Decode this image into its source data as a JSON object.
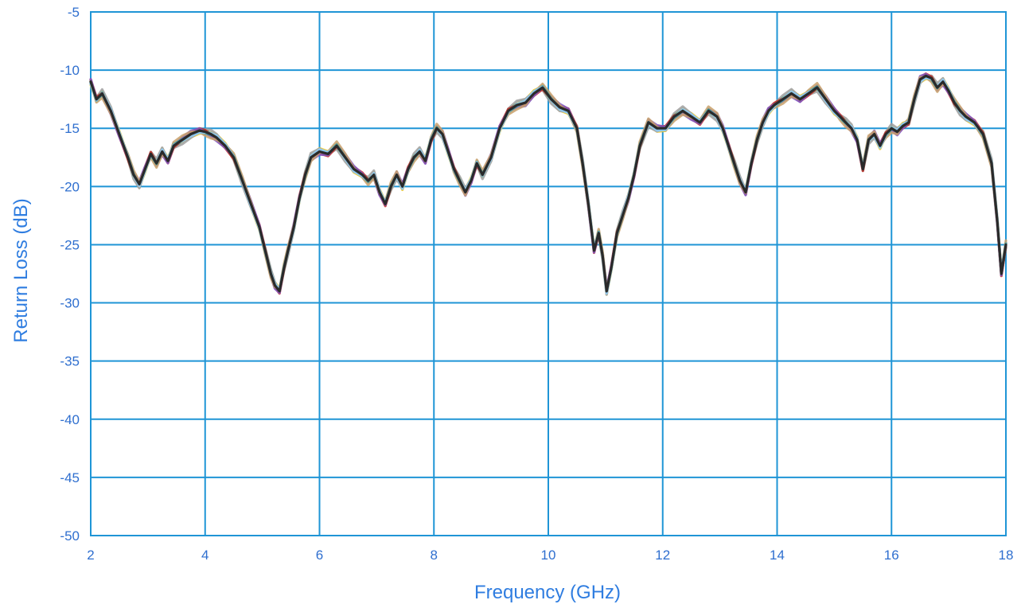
{
  "chart_data": {
    "type": "line",
    "title": "",
    "xlabel": "Frequency (GHz)",
    "ylabel": "Return Loss (dB)",
    "xlim": [
      2,
      18
    ],
    "ylim": [
      -50,
      -5
    ],
    "grid": true,
    "legend": "none",
    "xticks": [
      2,
      4,
      6,
      8,
      10,
      12,
      14,
      16,
      18
    ],
    "yticks": [
      -5,
      -10,
      -15,
      -20,
      -25,
      -30,
      -35,
      -40,
      -45,
      -50
    ],
    "axis_color": "#1f95d6",
    "label_color": "#2f6fcf",
    "series": [
      {
        "color": "#2a2a2a",
        "x": [
          2.0,
          2.1,
          2.2,
          2.35,
          2.5,
          2.65,
          2.75,
          2.85,
          2.95,
          3.05,
          3.15,
          3.25,
          3.35,
          3.45,
          3.6,
          3.75,
          3.9,
          4.0,
          4.1,
          4.2,
          4.35,
          4.5,
          4.65,
          4.8,
          4.95,
          5.05,
          5.15,
          5.22,
          5.3,
          5.38,
          5.45,
          5.55,
          5.65,
          5.75,
          5.85,
          6.0,
          6.15,
          6.3,
          6.45,
          6.6,
          6.75,
          6.85,
          6.95,
          7.05,
          7.15,
          7.25,
          7.35,
          7.45,
          7.55,
          7.65,
          7.75,
          7.85,
          7.95,
          8.05,
          8.15,
          8.25,
          8.35,
          8.45,
          8.55,
          8.65,
          8.75,
          8.85,
          9.0,
          9.15,
          9.3,
          9.45,
          9.6,
          9.75,
          9.9,
          10.05,
          10.2,
          10.35,
          10.5,
          10.6,
          10.7,
          10.8,
          10.88,
          10.95,
          11.02,
          11.1,
          11.2,
          11.3,
          11.4,
          11.5,
          11.6,
          11.75,
          11.9,
          12.05,
          12.2,
          12.35,
          12.5,
          12.65,
          12.8,
          12.95,
          13.05,
          13.15,
          13.25,
          13.35,
          13.45,
          13.55,
          13.65,
          13.75,
          13.85,
          13.95,
          14.1,
          14.25,
          14.4,
          14.55,
          14.7,
          14.85,
          15.0,
          15.1,
          15.2,
          15.3,
          15.4,
          15.5,
          15.6,
          15.7,
          15.8,
          15.9,
          16.0,
          16.1,
          16.2,
          16.3,
          16.4,
          16.5,
          16.6,
          16.7,
          16.8,
          16.9,
          17.0,
          17.1,
          17.2,
          17.3,
          17.45,
          17.6,
          17.75,
          17.85,
          17.92,
          18.0
        ],
        "y": [
          -11.0,
          -12.5,
          -12.0,
          -13.5,
          -15.5,
          -17.5,
          -19.0,
          -19.8,
          -18.5,
          -17.2,
          -18.0,
          -17.0,
          -17.8,
          -16.5,
          -16.0,
          -15.5,
          -15.2,
          -15.3,
          -15.5,
          -15.8,
          -16.5,
          -17.5,
          -19.5,
          -21.5,
          -23.5,
          -25.5,
          -27.5,
          -28.5,
          -29.0,
          -27.0,
          -25.5,
          -23.5,
          -21.0,
          -19.0,
          -17.5,
          -17.0,
          -17.2,
          -16.5,
          -17.5,
          -18.5,
          -19.0,
          -19.5,
          -19.0,
          -20.5,
          -21.5,
          -20.0,
          -19.0,
          -20.0,
          -18.5,
          -17.5,
          -17.0,
          -17.8,
          -16.0,
          -15.0,
          -15.5,
          -17.0,
          -18.5,
          -19.5,
          -20.5,
          -19.5,
          -18.0,
          -19.0,
          -17.5,
          -15.0,
          -13.5,
          -13.0,
          -12.8,
          -12.0,
          -11.5,
          -12.5,
          -13.2,
          -13.5,
          -15.0,
          -18.0,
          -21.5,
          -25.5,
          -24.0,
          -26.0,
          -29.0,
          -27.0,
          -24.0,
          -22.5,
          -21.0,
          -19.0,
          -16.5,
          -14.5,
          -15.0,
          -15.0,
          -14.0,
          -13.5,
          -14.0,
          -14.5,
          -13.5,
          -14.0,
          -15.0,
          -16.5,
          -18.0,
          -19.5,
          -20.5,
          -18.0,
          -16.0,
          -14.5,
          -13.5,
          -13.0,
          -12.5,
          -12.0,
          -12.5,
          -12.0,
          -11.5,
          -12.5,
          -13.5,
          -14.0,
          -14.5,
          -15.0,
          -16.0,
          -18.5,
          -16.0,
          -15.5,
          -16.5,
          -15.5,
          -15.0,
          -15.3,
          -14.8,
          -14.5,
          -12.5,
          -10.8,
          -10.5,
          -10.7,
          -11.5,
          -11.0,
          -11.8,
          -12.8,
          -13.5,
          -14.0,
          -14.5,
          -15.5,
          -18.0,
          -23.0,
          -27.5,
          -25.0
        ]
      }
    ]
  }
}
